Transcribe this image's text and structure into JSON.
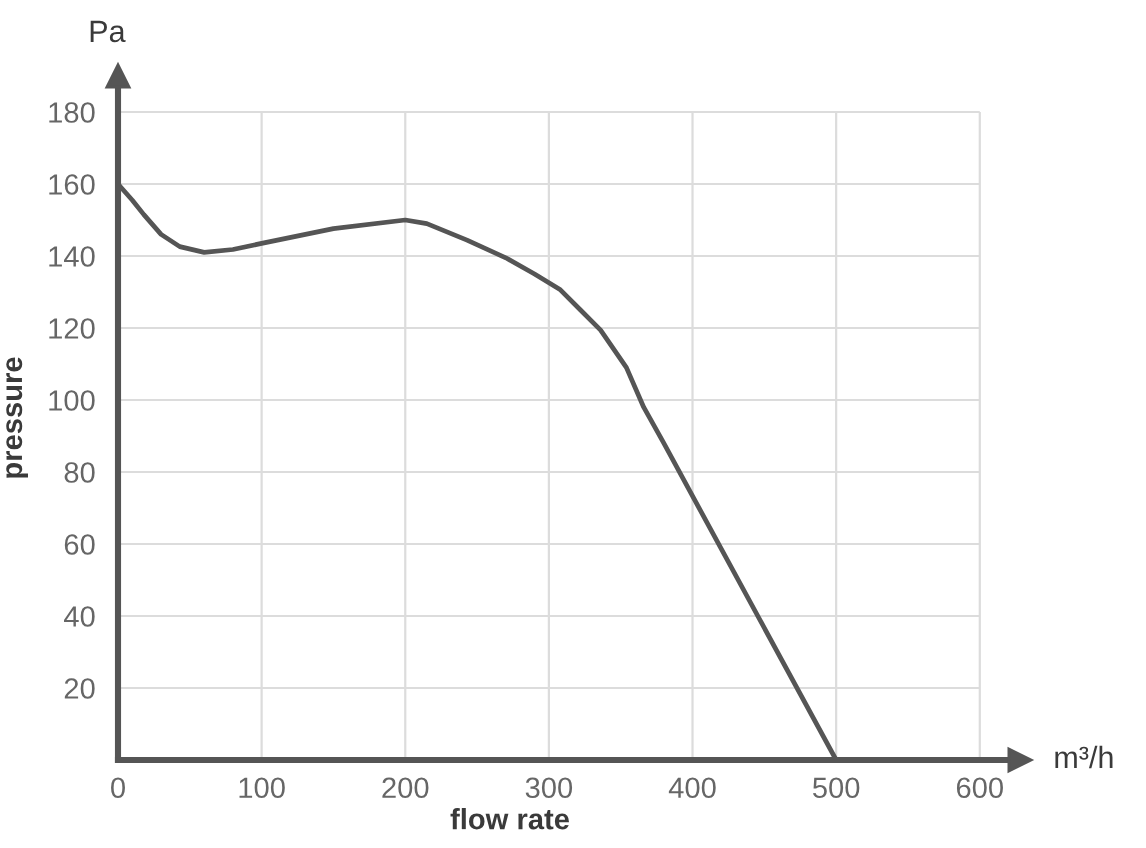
{
  "chart_data": {
    "type": "line",
    "xlabel": "flow rate",
    "ylabel": "pressure",
    "annotations": [
      "Pa",
      "m³/h"
    ],
    "series": [
      {
        "color": "#555555",
        "x": [
          0,
          10,
          18,
          30,
          43,
          60,
          80,
          100,
          150,
          200,
          215,
          243,
          270,
          290,
          308,
          322,
          336,
          354,
          366,
          380,
          500
        ],
        "values": [
          160,
          155.5,
          151.5,
          146,
          142.6,
          141,
          141.8,
          143.5,
          147.6,
          150,
          149,
          144.4,
          139.5,
          135,
          130.6,
          125,
          119.4,
          109,
          98,
          88,
          0
        ]
      }
    ],
    "xlim": [
      0,
      628
    ],
    "ylim": [
      0,
      190
    ],
    "xticks": [
      0,
      100,
      200,
      300,
      400,
      500,
      600
    ],
    "yticks": [
      20,
      40,
      60,
      80,
      100,
      120,
      140,
      160,
      180
    ],
    "grid": true
  }
}
